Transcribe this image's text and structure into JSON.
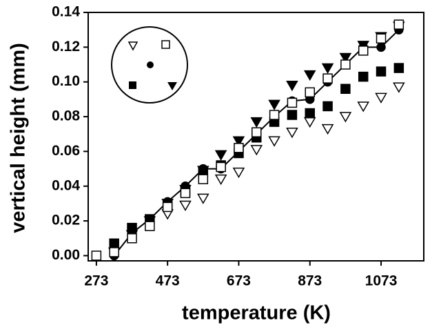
{
  "chart_data": {
    "type": "scatter",
    "xlabel": "temperature  (K)",
    "ylabel": "vertical height  (mm)",
    "x": [
      273,
      323,
      373,
      423,
      473,
      523,
      573,
      623,
      673,
      723,
      773,
      823,
      873,
      923,
      973,
      1023,
      1073,
      1123
    ],
    "xlim": [
      250,
      1193
    ],
    "ylim": [
      -0.003,
      0.14
    ],
    "xticks": [
      273,
      473,
      673,
      873,
      1073
    ],
    "yticks": [
      {
        "value": 0,
        "label": "0.00"
      },
      {
        "value": 0.02,
        "label": "0.02"
      },
      {
        "value": 0.04,
        "label": "0.04"
      },
      {
        "value": 0.06,
        "label": "0.06"
      },
      {
        "value": 0.08,
        "label": "0.08"
      },
      {
        "value": 0.1,
        "label": "0.10"
      },
      {
        "value": 0.12,
        "label": "0.12"
      },
      {
        "value": 0.14,
        "label": "0.14"
      }
    ],
    "series": [
      {
        "marker": "triangle-open",
        "color": "#000000",
        "values": [
          null,
          null,
          null,
          null,
          0.024,
          0.029,
          0.033,
          0.044,
          0.048,
          0.061,
          0.066,
          0.071,
          0.077,
          0.073,
          0.08,
          0.086,
          0.091,
          0.097
        ]
      },
      {
        "marker": "square-filled",
        "color": "#000000",
        "values": [
          null,
          0.007,
          0.016,
          0.021,
          0.029,
          0.037,
          0.048,
          0.052,
          0.059,
          0.068,
          0.077,
          0.081,
          0.082,
          0.086,
          0.096,
          0.103,
          0.106,
          0.108
        ]
      },
      {
        "marker": "triangle-filled",
        "color": "#000000",
        "values": [
          null,
          0.002,
          0.012,
          0.02,
          0.03,
          0.038,
          0.049,
          0.058,
          0.066,
          0.077,
          0.087,
          0.098,
          0.104,
          0.108,
          0.114,
          0.121,
          0.126,
          0.132
        ]
      },
      {
        "marker": "circle-filled",
        "line": true,
        "color": "#000000",
        "values": [
          null,
          0.0,
          0.013,
          0.021,
          0.031,
          0.04,
          0.05,
          0.05,
          0.06,
          0.07,
          0.08,
          0.089,
          0.09,
          0.1,
          0.11,
          0.12,
          0.12,
          0.13
        ]
      },
      {
        "marker": "square-open",
        "color": "#000000",
        "values": [
          0.0,
          0.002,
          0.01,
          0.017,
          0.028,
          0.036,
          0.044,
          0.051,
          0.062,
          0.071,
          0.081,
          0.088,
          0.094,
          0.102,
          0.11,
          0.118,
          0.125,
          0.133
        ]
      }
    ]
  }
}
